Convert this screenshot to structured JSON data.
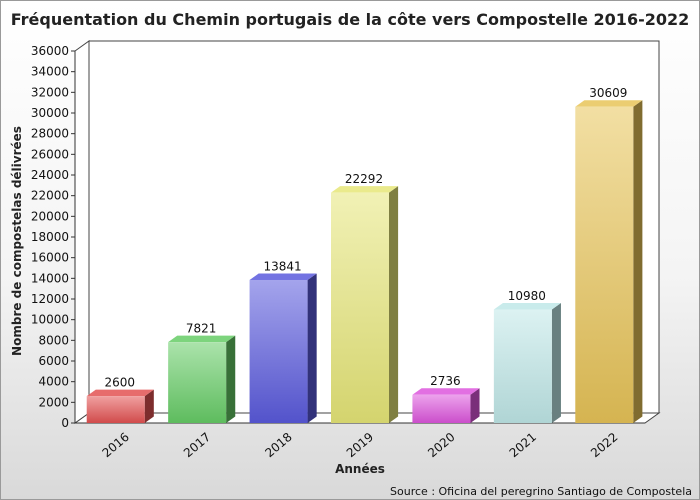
{
  "chart_data": {
    "type": "bar",
    "title": "Fréquentation du Chemin portugais de la côte vers Compostelle 2016-2022",
    "xlabel": "Années",
    "ylabel": "Nombre de compostelas délivrées",
    "source": "Source : Oficina del peregrino Santiago de Compostela",
    "categories": [
      "2016",
      "2017",
      "2018",
      "2019",
      "2020",
      "2021",
      "2022"
    ],
    "values": [
      2600,
      7821,
      13841,
      22292,
      2736,
      10980,
      30609
    ],
    "ylim": [
      0,
      36000
    ],
    "ytick_step": 2000,
    "grid": false,
    "legend": "none",
    "bar_colors": [
      "#e35252",
      "#66cc66",
      "#5a5add",
      "#e6e678",
      "#dd55dd",
      "#bfe8e8",
      "#e8c458"
    ]
  }
}
